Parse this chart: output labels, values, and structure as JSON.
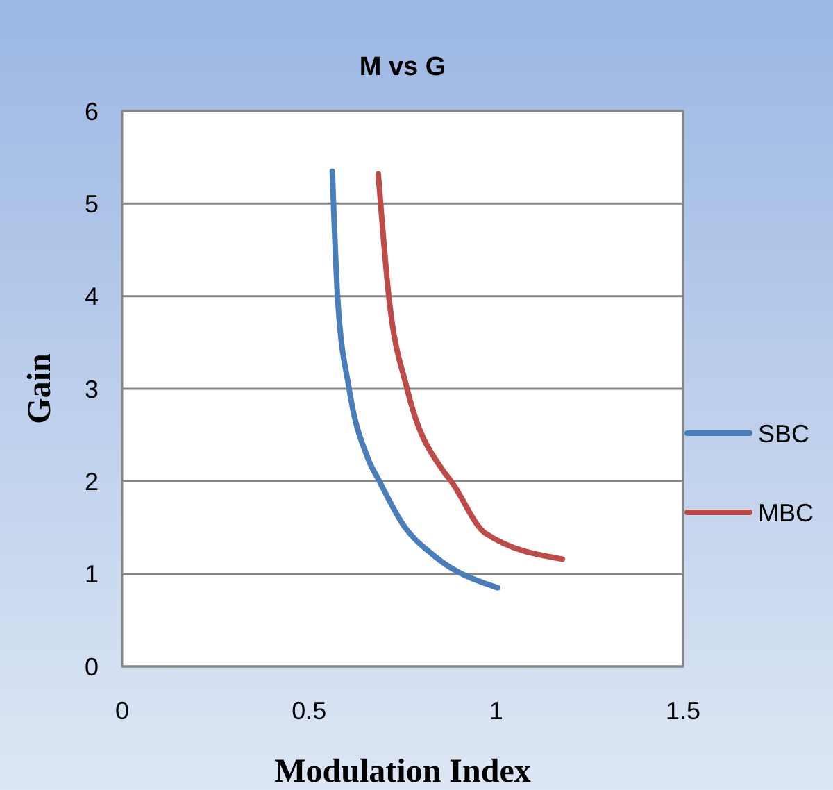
{
  "chart_data": {
    "type": "line",
    "title": "M vs G",
    "xlabel": "Modulation Index",
    "ylabel": "Gain",
    "xlim": [
      0,
      1.5
    ],
    "xticks": [
      0,
      0.5,
      1,
      1.5
    ],
    "ylim": [
      0,
      6
    ],
    "yticks": [
      0,
      1,
      2,
      3,
      4,
      5,
      6
    ],
    "grid": "y",
    "legend": "right",
    "marker": "none",
    "series": [
      {
        "name": "SBC",
        "color": "#4a7ebb",
        "x": [
          0.562,
          0.576,
          0.607,
          0.657,
          0.688,
          0.75,
          0.836,
          1.004
        ],
        "values": [
          5.35,
          4.0,
          3.0,
          2.25,
          2.0,
          1.54,
          1.19,
          0.85
        ]
      },
      {
        "name": "MBC",
        "color": "#be4b48",
        "x": [
          0.685,
          0.713,
          0.762,
          0.861,
          0.88,
          0.971,
          1.177
        ],
        "values": [
          5.32,
          4.0,
          3.0,
          2.1,
          2.0,
          1.44,
          1.16
        ]
      }
    ]
  }
}
